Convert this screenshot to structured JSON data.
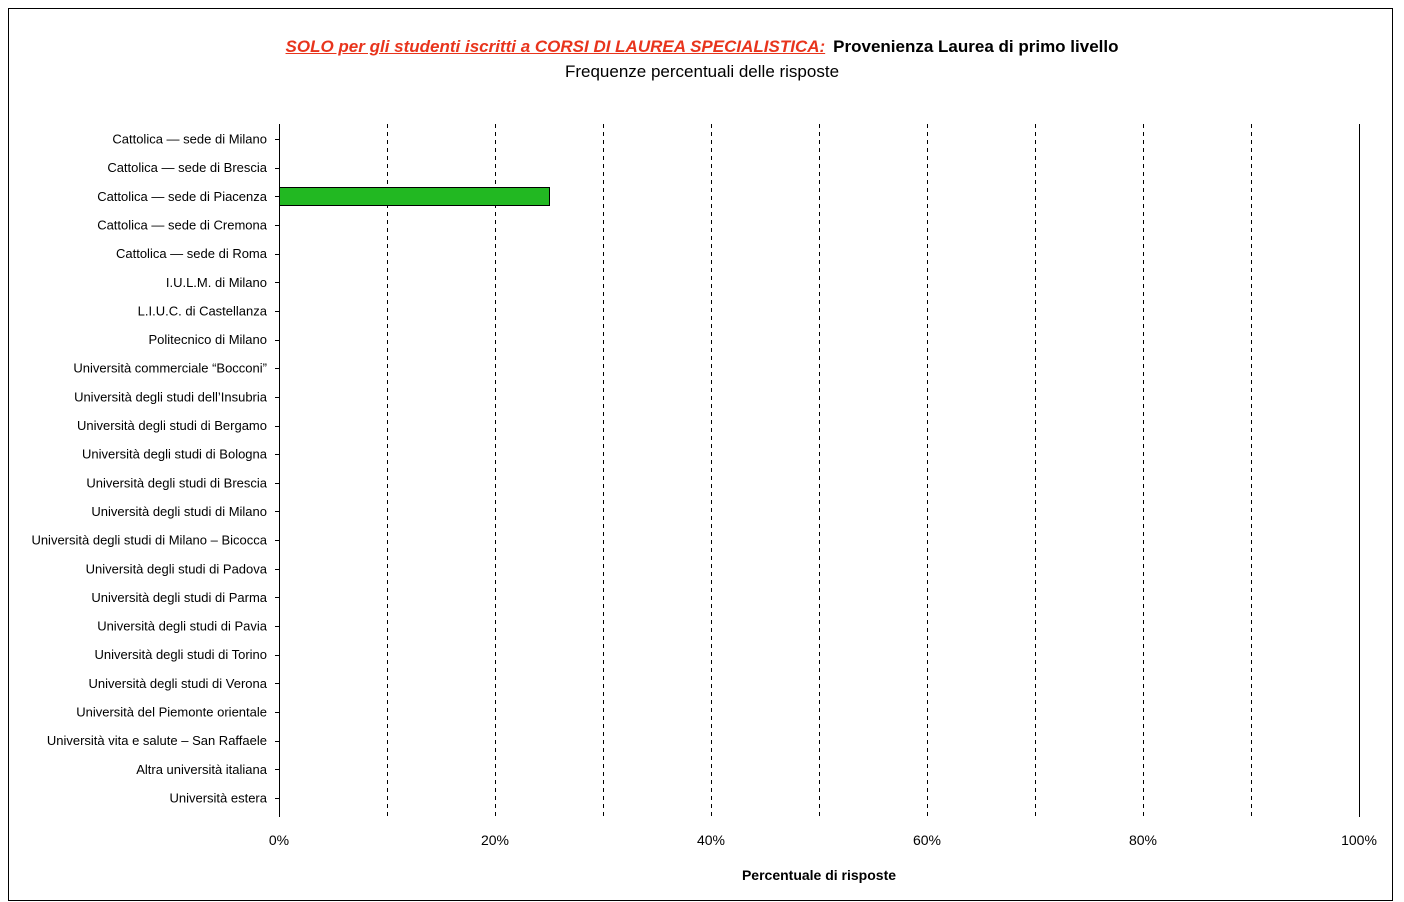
{
  "title": {
    "prefix": "SOLO per gli studenti iscritti a CORSI DI LAUREA SPECIALISTICA:",
    "main": "Provenienza Laurea di primo livello"
  },
  "subtitle": "Frequenze percentuali delle risposte",
  "colors": {
    "bar": "#22b822",
    "title_accent": "#e8341c"
  },
  "chart_data": {
    "type": "bar",
    "orientation": "horizontal",
    "title": "Provenienza Laurea di primo livello",
    "subtitle": "Frequenze percentuali delle risposte",
    "xlabel": "Percentuale di risposte",
    "ylabel": "",
    "xlim": [
      0,
      100
    ],
    "x_ticks": [
      0,
      20,
      40,
      60,
      80,
      100
    ],
    "x_tick_labels": [
      "0%",
      "20%",
      "40%",
      "60%",
      "80%",
      "100%"
    ],
    "grid_lines": [
      10,
      20,
      30,
      40,
      50,
      60,
      70,
      80,
      90
    ],
    "grid": "vertical-dashed",
    "categories": [
      "Cattolica — sede di Milano",
      "Cattolica — sede di Brescia",
      "Cattolica — sede di Piacenza",
      "Cattolica — sede di Cremona",
      "Cattolica — sede di Roma",
      "I.U.L.M. di Milano",
      "L.I.U.C. di Castellanza",
      "Politecnico di Milano",
      "Università commerciale “Bocconi”",
      "Università degli studi dell’Insubria",
      "Università degli studi di Bergamo",
      "Università degli studi di Bologna",
      "Università degli studi di Brescia",
      "Università degli studi di Milano",
      "Università degli studi di Milano – Bicocca",
      "Università degli studi di Padova",
      "Università degli studi di Parma",
      "Università degli studi di Pavia",
      "Università degli studi di Torino",
      "Università degli studi di Verona",
      "Università del Piemonte orientale",
      "Università vita e salute – San Raffaele",
      "Altra università italiana",
      "Università estera"
    ],
    "values": [
      0,
      0,
      25,
      0,
      0,
      0,
      0,
      0,
      0,
      0,
      0,
      0,
      0,
      0,
      0,
      0,
      0,
      0,
      0,
      0,
      0,
      0,
      0,
      0
    ]
  }
}
